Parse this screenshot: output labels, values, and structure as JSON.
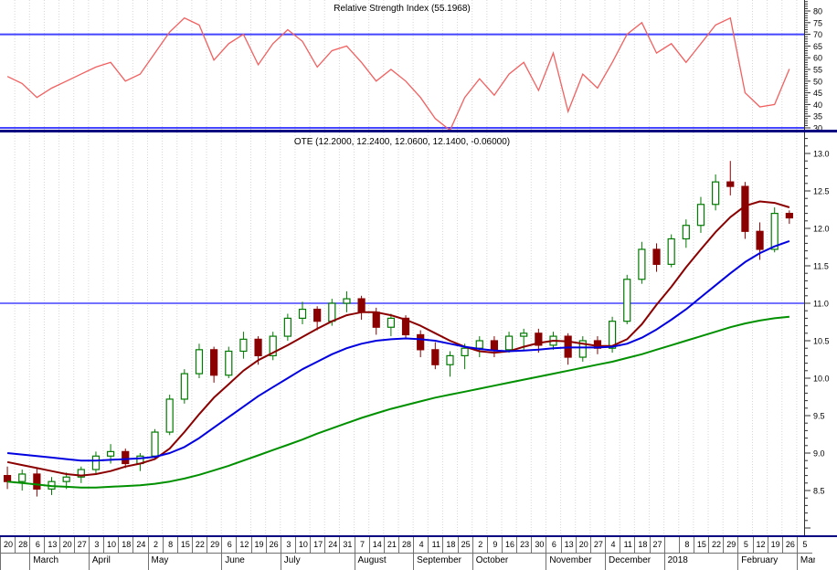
{
  "chart_data": [
    {
      "type": "line",
      "name": "RSI",
      "title": "Relative Strength Index (55.1968)",
      "current_value": 55.1968,
      "line_color": "#f26060",
      "levels": [
        70,
        30
      ],
      "level_color": "#4444ff",
      "ylim": [
        25,
        85
      ],
      "axis_ticks": [
        80,
        75,
        70,
        65,
        60,
        55,
        50,
        45,
        40,
        35,
        30
      ],
      "values": [
        52,
        49,
        43,
        47,
        50,
        53,
        56,
        58,
        50,
        53,
        62,
        71,
        77,
        74,
        59,
        66,
        70,
        57,
        66,
        72,
        67,
        56,
        63,
        65,
        58,
        50,
        55,
        50,
        43,
        34,
        29,
        43,
        51,
        44,
        53,
        58,
        46,
        62,
        37,
        53,
        47,
        58,
        70,
        75,
        62,
        66,
        58,
        66,
        74,
        77,
        45,
        39,
        40,
        55.2
      ]
    },
    {
      "type": "candlestick",
      "name": "OTE",
      "title": "OTE (12.2000, 12.2400, 12.0600, 12.1400, -0.06000)",
      "last": {
        "open": 12.2,
        "high": 12.24,
        "low": 12.06,
        "close": 12.14,
        "change": -0.06
      },
      "ylim": [
        7.9,
        13.25
      ],
      "axis_ticks": [
        13.0,
        12.5,
        12.0,
        11.5,
        11.0,
        10.5,
        10.0,
        9.5,
        9.0,
        8.5
      ],
      "support_level": 11.0,
      "support_color": "#4444ff",
      "up_color": "#007a00",
      "down_color": "#8b0000",
      "ohlc": [
        [
          8.7,
          8.82,
          8.52,
          8.62
        ],
        [
          8.62,
          8.78,
          8.5,
          8.72
        ],
        [
          8.72,
          8.8,
          8.42,
          8.52
        ],
        [
          8.52,
          8.68,
          8.44,
          8.62
        ],
        [
          8.62,
          8.74,
          8.52,
          8.68
        ],
        [
          8.68,
          8.82,
          8.6,
          8.78
        ],
        [
          8.78,
          9.02,
          8.72,
          8.96
        ],
        [
          8.96,
          9.12,
          8.86,
          9.02
        ],
        [
          9.02,
          9.06,
          8.8,
          8.86
        ],
        [
          8.86,
          9.0,
          8.76,
          8.96
        ],
        [
          8.96,
          9.32,
          8.92,
          9.28
        ],
        [
          9.28,
          9.78,
          9.24,
          9.72
        ],
        [
          9.72,
          10.12,
          9.66,
          10.06
        ],
        [
          10.06,
          10.46,
          10.0,
          10.38
        ],
        [
          10.38,
          10.42,
          9.94,
          10.04
        ],
        [
          10.04,
          10.42,
          10.0,
          10.36
        ],
        [
          10.36,
          10.62,
          10.26,
          10.52
        ],
        [
          10.52,
          10.56,
          10.18,
          10.3
        ],
        [
          10.3,
          10.62,
          10.24,
          10.56
        ],
        [
          10.56,
          10.86,
          10.5,
          10.8
        ],
        [
          10.8,
          11.02,
          10.72,
          10.92
        ],
        [
          10.92,
          10.96,
          10.64,
          10.76
        ],
        [
          10.76,
          11.06,
          10.7,
          11.0
        ],
        [
          11.0,
          11.16,
          10.88,
          11.06
        ],
        [
          11.06,
          11.1,
          10.78,
          10.88
        ],
        [
          10.88,
          10.94,
          10.58,
          10.68
        ],
        [
          10.68,
          10.86,
          10.56,
          10.8
        ],
        [
          10.8,
          10.84,
          10.52,
          10.58
        ],
        [
          10.58,
          10.64,
          10.28,
          10.38
        ],
        [
          10.38,
          10.48,
          10.12,
          10.18
        ],
        [
          10.18,
          10.36,
          10.02,
          10.3
        ],
        [
          10.3,
          10.46,
          10.12,
          10.4
        ],
        [
          10.4,
          10.56,
          10.28,
          10.5
        ],
        [
          10.5,
          10.56,
          10.28,
          10.38
        ],
        [
          10.38,
          10.62,
          10.34,
          10.56
        ],
        [
          10.56,
          10.66,
          10.38,
          10.6
        ],
        [
          10.6,
          10.66,
          10.34,
          10.44
        ],
        [
          10.44,
          10.62,
          10.38,
          10.56
        ],
        [
          10.56,
          10.6,
          10.18,
          10.28
        ],
        [
          10.28,
          10.56,
          10.22,
          10.5
        ],
        [
          10.5,
          10.56,
          10.32,
          10.4
        ],
        [
          10.4,
          10.82,
          10.34,
          10.76
        ],
        [
          10.76,
          11.38,
          10.72,
          11.32
        ],
        [
          11.32,
          11.82,
          11.26,
          11.72
        ],
        [
          11.72,
          11.8,
          11.42,
          11.52
        ],
        [
          11.52,
          11.92,
          11.48,
          11.86
        ],
        [
          11.86,
          12.12,
          11.74,
          12.04
        ],
        [
          12.04,
          12.42,
          11.94,
          12.32
        ],
        [
          12.32,
          12.72,
          12.24,
          12.62
        ],
        [
          12.62,
          12.9,
          12.44,
          12.56
        ],
        [
          12.56,
          12.62,
          11.86,
          11.96
        ],
        [
          11.96,
          12.08,
          11.58,
          11.72
        ],
        [
          11.72,
          12.28,
          11.68,
          12.2
        ],
        [
          12.2,
          12.24,
          12.06,
          12.14
        ]
      ],
      "series": [
        {
          "name": "MA fast",
          "color": "#8b0000",
          "values": [
            8.88,
            8.84,
            8.8,
            8.76,
            8.72,
            8.7,
            8.72,
            8.76,
            8.82,
            8.86,
            8.92,
            9.06,
            9.28,
            9.52,
            9.74,
            9.92,
            10.1,
            10.24,
            10.34,
            10.44,
            10.55,
            10.66,
            10.76,
            10.84,
            10.88,
            10.88,
            10.84,
            10.78,
            10.7,
            10.6,
            10.5,
            10.42,
            10.36,
            10.34,
            10.36,
            10.42,
            10.47,
            10.5,
            10.49,
            10.46,
            10.43,
            10.43,
            10.52,
            10.72,
            10.98,
            11.22,
            11.48,
            11.72,
            11.95,
            12.15,
            12.3,
            12.36,
            12.34,
            12.28
          ]
        },
        {
          "name": "MA mid",
          "color": "#0000e0",
          "values": [
            9.0,
            8.98,
            8.96,
            8.94,
            8.92,
            8.9,
            8.9,
            8.91,
            8.92,
            8.93,
            8.95,
            9.0,
            9.08,
            9.2,
            9.34,
            9.48,
            9.62,
            9.76,
            9.88,
            10.0,
            10.12,
            10.22,
            10.32,
            10.4,
            10.46,
            10.5,
            10.52,
            10.53,
            10.52,
            10.5,
            10.46,
            10.42,
            10.39,
            10.37,
            10.36,
            10.37,
            10.38,
            10.4,
            10.41,
            10.41,
            10.41,
            10.42,
            10.46,
            10.54,
            10.65,
            10.78,
            10.92,
            11.08,
            11.24,
            11.4,
            11.55,
            11.67,
            11.76,
            11.83
          ]
        },
        {
          "name": "MA slow",
          "color": "#009000",
          "values": [
            8.62,
            8.6,
            8.58,
            8.56,
            8.55,
            8.54,
            8.54,
            8.55,
            8.56,
            8.57,
            8.59,
            8.62,
            8.66,
            8.71,
            8.77,
            8.83,
            8.9,
            8.97,
            9.04,
            9.11,
            9.18,
            9.26,
            9.33,
            9.4,
            9.47,
            9.53,
            9.59,
            9.64,
            9.69,
            9.74,
            9.78,
            9.82,
            9.86,
            9.9,
            9.94,
            9.98,
            10.02,
            10.06,
            10.1,
            10.14,
            10.18,
            10.22,
            10.27,
            10.32,
            10.38,
            10.44,
            10.5,
            10.56,
            10.62,
            10.68,
            10.73,
            10.77,
            10.8,
            10.82
          ]
        }
      ]
    }
  ],
  "x_axis": {
    "week_labels": [
      "20",
      "28",
      "6",
      "13",
      "20",
      "27",
      "3",
      "10",
      "18",
      "24",
      "2",
      "8",
      "15",
      "22",
      "29",
      "6",
      "12",
      "19",
      "26",
      "3",
      "10",
      "17",
      "24",
      "31",
      "7",
      "14",
      "21",
      "28",
      "4",
      "11",
      "18",
      "25",
      "2",
      "9",
      "16",
      "23",
      "30",
      "6",
      "13",
      "20",
      "27",
      "4",
      "11",
      "18",
      "27",
      "",
      "8",
      "15",
      "22",
      "29",
      "5",
      "12",
      "19",
      "26",
      "5"
    ],
    "months": [
      {
        "name": "",
        "start": 0,
        "end": 1
      },
      {
        "name": "March",
        "start": 2,
        "end": 5
      },
      {
        "name": "April",
        "start": 6,
        "end": 9
      },
      {
        "name": "May",
        "start": 10,
        "end": 14
      },
      {
        "name": "June",
        "start": 15,
        "end": 18
      },
      {
        "name": "July",
        "start": 19,
        "end": 23
      },
      {
        "name": "August",
        "start": 24,
        "end": 27
      },
      {
        "name": "September",
        "start": 28,
        "end": 31
      },
      {
        "name": "October",
        "start": 32,
        "end": 36
      },
      {
        "name": "November",
        "start": 37,
        "end": 40
      },
      {
        "name": "December",
        "start": 41,
        "end": 44
      },
      {
        "name": "2018",
        "start": 45,
        "end": 49
      },
      {
        "name": "February",
        "start": 50,
        "end": 53
      },
      {
        "name": "March",
        "start": 54,
        "end": 54
      }
    ]
  },
  "colors": {
    "background": "#ffffff",
    "grid": "#d6d6d6",
    "separator": "#000080",
    "axis": "#303030",
    "text": "#000000"
  }
}
